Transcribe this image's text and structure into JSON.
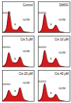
{
  "chart_data": [
    {
      "type": "area",
      "title": "Control",
      "color": "#d7191c",
      "tick_labels": false,
      "xlim": [
        0,
        200
      ],
      "ylim": [
        0,
        110
      ],
      "x": [
        0,
        10,
        20,
        30,
        40,
        50,
        60,
        70,
        80,
        90,
        100,
        110,
        120,
        130,
        140,
        150,
        160,
        170,
        180,
        190,
        200
      ],
      "values": [
        0,
        2,
        5,
        20,
        90,
        60,
        15,
        10,
        9,
        8,
        12,
        25,
        18,
        6,
        3,
        2,
        1,
        1,
        0,
        0,
        0
      ],
      "annotations": [
        {
          "text": "G0/G1",
          "x": 25,
          "y": 70
        },
        {
          "text": "S",
          "x": 80,
          "y": 30
        },
        {
          "text": "G2/M",
          "x": 150,
          "y": 45
        }
      ]
    },
    {
      "type": "area",
      "title": "DMSO",
      "color": "#d7191c",
      "tick_labels": false,
      "xlim": [
        0,
        200
      ],
      "ylim": [
        0,
        110
      ],
      "x": [
        0,
        10,
        20,
        30,
        40,
        50,
        60,
        70,
        80,
        90,
        100,
        110,
        120,
        130,
        140,
        150,
        160,
        170,
        180,
        190,
        200
      ],
      "values": [
        0,
        3,
        6,
        25,
        80,
        50,
        16,
        12,
        11,
        11,
        15,
        30,
        22,
        7,
        3,
        2,
        1,
        0,
        0,
        0,
        0
      ],
      "annotations": [
        {
          "text": "G0/G1",
          "x": 25,
          "y": 70
        },
        {
          "text": "S",
          "x": 80,
          "y": 30
        },
        {
          "text": "G2/M",
          "x": 150,
          "y": 45
        }
      ]
    },
    {
      "type": "area",
      "title": "Cis 5 μM",
      "color": "#d7191c",
      "tick_labels": false,
      "xlim": [
        0,
        200
      ],
      "ylim": [
        0,
        110
      ],
      "x": [
        0,
        10,
        20,
        30,
        40,
        50,
        60,
        70,
        80,
        90,
        100,
        110,
        120,
        130,
        140,
        150,
        160,
        170,
        180,
        190,
        200
      ],
      "values": [
        0,
        4,
        8,
        22,
        60,
        40,
        18,
        15,
        14,
        14,
        20,
        40,
        30,
        9,
        4,
        2,
        1,
        0,
        0,
        0,
        0
      ],
      "annotations": [
        {
          "text": "G0/G1",
          "x": 25,
          "y": 70
        },
        {
          "text": "S",
          "x": 80,
          "y": 30
        },
        {
          "text": "G2/M",
          "x": 150,
          "y": 55
        }
      ]
    },
    {
      "type": "area",
      "title": "Cis 10 μM",
      "color": "#d7191c",
      "tick_labels": false,
      "xlim": [
        0,
        200
      ],
      "ylim": [
        0,
        110
      ],
      "x": [
        0,
        10,
        20,
        30,
        40,
        50,
        60,
        70,
        80,
        90,
        100,
        110,
        120,
        130,
        140,
        150,
        160,
        170,
        180,
        190,
        200
      ],
      "values": [
        0,
        3,
        7,
        24,
        70,
        45,
        17,
        14,
        13,
        13,
        18,
        35,
        26,
        8,
        3,
        2,
        1,
        0,
        0,
        0,
        0
      ],
      "annotations": [
        {
          "text": "G0/G1",
          "x": 25,
          "y": 70
        },
        {
          "text": "S",
          "x": 80,
          "y": 30
        },
        {
          "text": "G2/M",
          "x": 150,
          "y": 50
        }
      ]
    },
    {
      "type": "area",
      "title": "Cis 20 μM",
      "color": "#d7191c",
      "tick_labels": false,
      "xlim": [
        0,
        200
      ],
      "ylim": [
        0,
        110
      ],
      "x": [
        0,
        10,
        20,
        30,
        40,
        50,
        60,
        70,
        80,
        90,
        100,
        110,
        120,
        130,
        140,
        150,
        160,
        170,
        180,
        190,
        200
      ],
      "values": [
        0,
        5,
        10,
        20,
        45,
        32,
        20,
        18,
        17,
        18,
        25,
        55,
        40,
        12,
        5,
        2,
        1,
        0,
        0,
        0,
        0
      ],
      "annotations": [
        {
          "text": "G0/G1",
          "x": 25,
          "y": 60
        },
        {
          "text": "S",
          "x": 80,
          "y": 35
        },
        {
          "text": "G2/M",
          "x": 150,
          "y": 65
        }
      ]
    },
    {
      "type": "area",
      "title": "Cis 40 μM",
      "color": "#d7191c",
      "tick_labels": false,
      "xlim": [
        0,
        200
      ],
      "ylim": [
        0,
        110
      ],
      "x": [
        0,
        10,
        20,
        30,
        40,
        50,
        60,
        70,
        80,
        90,
        100,
        110,
        120,
        130,
        140,
        150,
        160,
        170,
        180,
        190,
        200
      ],
      "values": [
        0,
        4,
        8,
        26,
        75,
        48,
        16,
        12,
        11,
        11,
        14,
        28,
        20,
        6,
        3,
        2,
        1,
        0,
        0,
        0,
        0
      ],
      "annotations": [
        {
          "text": "G0/G1",
          "x": 25,
          "y": 70
        },
        {
          "text": "S",
          "x": 80,
          "y": 30
        },
        {
          "text": "G2/M",
          "x": 150,
          "y": 45
        }
      ]
    }
  ]
}
